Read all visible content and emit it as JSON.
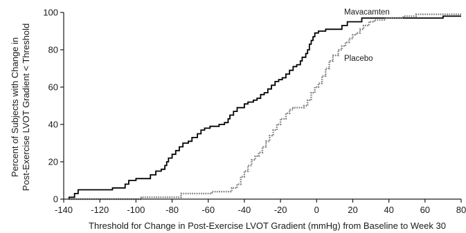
{
  "chart_data": {
    "type": "line",
    "title": "",
    "xlabel": "Threshold for Change in Post-Exercise LVOT Gradient (mmHg) from Baseline to Week 30",
    "ylabel_lines": [
      "Percent of Subjects with Change in",
      "Post-Exercise LVOT Gradient < Threshold"
    ],
    "xlim": [
      -140,
      80
    ],
    "ylim": [
      0,
      100
    ],
    "xticks": [
      -140,
      -120,
      -100,
      -80,
      -60,
      -40,
      -20,
      0,
      20,
      40,
      60,
      80
    ],
    "yticks": [
      0,
      20,
      40,
      60,
      80,
      100
    ],
    "grid": false,
    "legend": "none",
    "series": [
      {
        "name": "Mavacamten",
        "style": "solid",
        "color": "#000000",
        "points": [
          [
            -137,
            0
          ],
          [
            -137,
            1
          ],
          [
            -134,
            1
          ],
          [
            -134,
            3
          ],
          [
            -132,
            3
          ],
          [
            -132,
            5
          ],
          [
            -120,
            5
          ],
          [
            -113,
            5
          ],
          [
            -113,
            6
          ],
          [
            -106,
            6
          ],
          [
            -106,
            8
          ],
          [
            -104,
            8
          ],
          [
            -104,
            10
          ],
          [
            -100,
            10
          ],
          [
            -100,
            11
          ],
          [
            -92,
            11
          ],
          [
            -92,
            13
          ],
          [
            -89,
            13
          ],
          [
            -89,
            15
          ],
          [
            -86,
            15
          ],
          [
            -86,
            16
          ],
          [
            -84,
            16
          ],
          [
            -84,
            18
          ],
          [
            -83,
            18
          ],
          [
            -83,
            20
          ],
          [
            -82,
            20
          ],
          [
            -82,
            22
          ],
          [
            -80,
            22
          ],
          [
            -80,
            24
          ],
          [
            -78,
            24
          ],
          [
            -78,
            26
          ],
          [
            -76,
            26
          ],
          [
            -76,
            28
          ],
          [
            -74,
            28
          ],
          [
            -74,
            30
          ],
          [
            -71,
            30
          ],
          [
            -71,
            31
          ],
          [
            -69,
            31
          ],
          [
            -69,
            33
          ],
          [
            -66,
            33
          ],
          [
            -66,
            35
          ],
          [
            -64,
            35
          ],
          [
            -64,
            37
          ],
          [
            -62,
            37
          ],
          [
            -62,
            38
          ],
          [
            -59,
            38
          ],
          [
            -59,
            39
          ],
          [
            -54,
            39
          ],
          [
            -54,
            40
          ],
          [
            -51,
            40
          ],
          [
            -51,
            41
          ],
          [
            -49,
            41
          ],
          [
            -49,
            43
          ],
          [
            -48,
            43
          ],
          [
            -48,
            45
          ],
          [
            -46,
            45
          ],
          [
            -46,
            47
          ],
          [
            -44,
            47
          ],
          [
            -44,
            49
          ],
          [
            -40,
            49
          ],
          [
            -40,
            51
          ],
          [
            -38,
            51
          ],
          [
            -38,
            52
          ],
          [
            -35,
            52
          ],
          [
            -35,
            53
          ],
          [
            -33,
            53
          ],
          [
            -33,
            54
          ],
          [
            -31,
            54
          ],
          [
            -31,
            56
          ],
          [
            -29,
            56
          ],
          [
            -29,
            57
          ],
          [
            -27,
            57
          ],
          [
            -27,
            59
          ],
          [
            -25,
            59
          ],
          [
            -25,
            61
          ],
          [
            -23,
            61
          ],
          [
            -23,
            63
          ],
          [
            -21,
            63
          ],
          [
            -21,
            64
          ],
          [
            -19,
            64
          ],
          [
            -19,
            65
          ],
          [
            -17,
            65
          ],
          [
            -17,
            67
          ],
          [
            -15,
            67
          ],
          [
            -15,
            69
          ],
          [
            -13,
            69
          ],
          [
            -13,
            71
          ],
          [
            -11,
            71
          ],
          [
            -11,
            72
          ],
          [
            -9,
            72
          ],
          [
            -9,
            74
          ],
          [
            -8,
            74
          ],
          [
            -8,
            76
          ],
          [
            -6,
            76
          ],
          [
            -6,
            78
          ],
          [
            -5,
            78
          ],
          [
            -5,
            80
          ],
          [
            -4,
            80
          ],
          [
            -4,
            83
          ],
          [
            -3,
            83
          ],
          [
            -3,
            85
          ],
          [
            -2,
            85
          ],
          [
            -2,
            87
          ],
          [
            -1,
            87
          ],
          [
            -1,
            89
          ],
          [
            1,
            89
          ],
          [
            1,
            90
          ],
          [
            5,
            90
          ],
          [
            5,
            91
          ],
          [
            14,
            91
          ],
          [
            14,
            93
          ],
          [
            17,
            93
          ],
          [
            17,
            95
          ],
          [
            25,
            95
          ],
          [
            25,
            97
          ],
          [
            70,
            97
          ],
          [
            70,
            98
          ],
          [
            80,
            98
          ]
        ]
      },
      {
        "name": "Placebo",
        "style": "dotted",
        "color": "#7a7a7a",
        "points": [
          [
            -137,
            0
          ],
          [
            -100,
            0
          ],
          [
            -97,
            0
          ],
          [
            -97,
            1
          ],
          [
            -75,
            1
          ],
          [
            -75,
            3
          ],
          [
            -61,
            3
          ],
          [
            -58,
            3
          ],
          [
            -58,
            4
          ],
          [
            -50,
            4
          ],
          [
            -47,
            4
          ],
          [
            -47,
            6
          ],
          [
            -44,
            6
          ],
          [
            -44,
            8
          ],
          [
            -42,
            8
          ],
          [
            -42,
            12
          ],
          [
            -40,
            12
          ],
          [
            -40,
            15
          ],
          [
            -38,
            15
          ],
          [
            -38,
            18
          ],
          [
            -36,
            18
          ],
          [
            -36,
            21
          ],
          [
            -34,
            21
          ],
          [
            -34,
            23
          ],
          [
            -32,
            23
          ],
          [
            -32,
            25
          ],
          [
            -30,
            25
          ],
          [
            -30,
            28
          ],
          [
            -28,
            28
          ],
          [
            -28,
            31
          ],
          [
            -26,
            31
          ],
          [
            -26,
            34
          ],
          [
            -24,
            34
          ],
          [
            -24,
            37
          ],
          [
            -22,
            37
          ],
          [
            -22,
            40
          ],
          [
            -20,
            40
          ],
          [
            -20,
            43
          ],
          [
            -17,
            43
          ],
          [
            -17,
            46
          ],
          [
            -15,
            46
          ],
          [
            -15,
            48
          ],
          [
            -13,
            48
          ],
          [
            -13,
            49
          ],
          [
            -7,
            49
          ],
          [
            -7,
            50
          ],
          [
            -5,
            50
          ],
          [
            -5,
            53
          ],
          [
            -3,
            53
          ],
          [
            -3,
            57
          ],
          [
            -1,
            57
          ],
          [
            -1,
            60
          ],
          [
            1,
            60
          ],
          [
            1,
            62
          ],
          [
            3,
            62
          ],
          [
            3,
            66
          ],
          [
            5,
            66
          ],
          [
            5,
            70
          ],
          [
            7,
            70
          ],
          [
            7,
            74
          ],
          [
            9,
            74
          ],
          [
            9,
            77
          ],
          [
            12,
            77
          ],
          [
            12,
            80
          ],
          [
            14,
            80
          ],
          [
            14,
            82
          ],
          [
            16,
            82
          ],
          [
            16,
            84
          ],
          [
            18,
            84
          ],
          [
            18,
            86
          ],
          [
            20,
            86
          ],
          [
            20,
            88
          ],
          [
            22,
            88
          ],
          [
            22,
            89
          ],
          [
            24,
            89
          ],
          [
            24,
            91
          ],
          [
            26,
            91
          ],
          [
            26,
            93
          ],
          [
            29,
            93
          ],
          [
            29,
            95
          ],
          [
            32,
            95
          ],
          [
            32,
            96
          ],
          [
            38,
            96
          ],
          [
            38,
            97
          ],
          [
            48,
            97
          ],
          [
            48,
            98
          ],
          [
            55,
            98
          ],
          [
            55,
            99
          ],
          [
            80,
            99
          ]
        ]
      }
    ]
  }
}
